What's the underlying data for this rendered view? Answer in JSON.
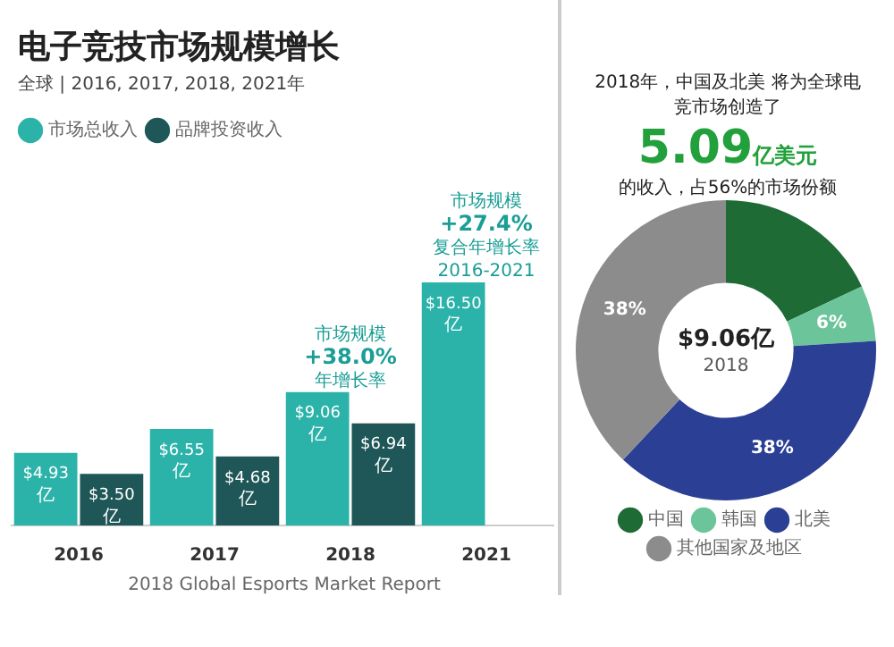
{
  "chart_data": [
    {
      "type": "bar",
      "title": "电子竞技市场规模增长",
      "subtitle": "全球 | 2016, 2017, 2018, 2021年",
      "categories": [
        "2016",
        "2017",
        "2018",
        "2021"
      ],
      "series": [
        {
          "name": "市场总收入",
          "color": "#2bb3aa",
          "values": [
            4.93,
            6.55,
            9.06,
            16.5
          ],
          "value_labels": [
            "$4.93 亿",
            "$6.55 亿",
            "$9.06 亿",
            "$16.50 亿"
          ]
        },
        {
          "name": "品牌投资收入",
          "color": "#1f5657",
          "values": [
            3.5,
            4.68,
            6.94,
            null
          ],
          "value_labels": [
            "$3.50 亿",
            "$4.68 亿",
            "$6.94 亿",
            null
          ]
        }
      ],
      "legend": "top left",
      "tick_labels": "x",
      "grid": false,
      "annotations": [
        {
          "text": "市场规模 +38.0% 年增长率",
          "x": "2018",
          "y": 9.06
        },
        {
          "text": "市场规模 +27.4% 复合年增长率 2016-2021",
          "x": "2021",
          "y": 16.5
        },
        "2018 Global Esports Market Report"
      ]
    },
    {
      "type": "donut",
      "title": "2018年，中国及北美 将为全球电竞市场创造了",
      "categories": [
        "中国",
        "韩国",
        "北美",
        "其他国家及地区"
      ],
      "values": [
        18,
        6,
        38,
        38
      ],
      "colors": [
        "#1e6b35",
        "#6cc59a",
        "#2b3f95",
        "#8c8c8c"
      ],
      "value_labels": [
        null,
        "6%",
        "38%",
        "38%"
      ],
      "legend": "bottom",
      "annotations": [
        "5.09亿美元",
        "的收入，占56%的市场份额",
        "$9.06亿",
        "2018"
      ]
    }
  ]
}
